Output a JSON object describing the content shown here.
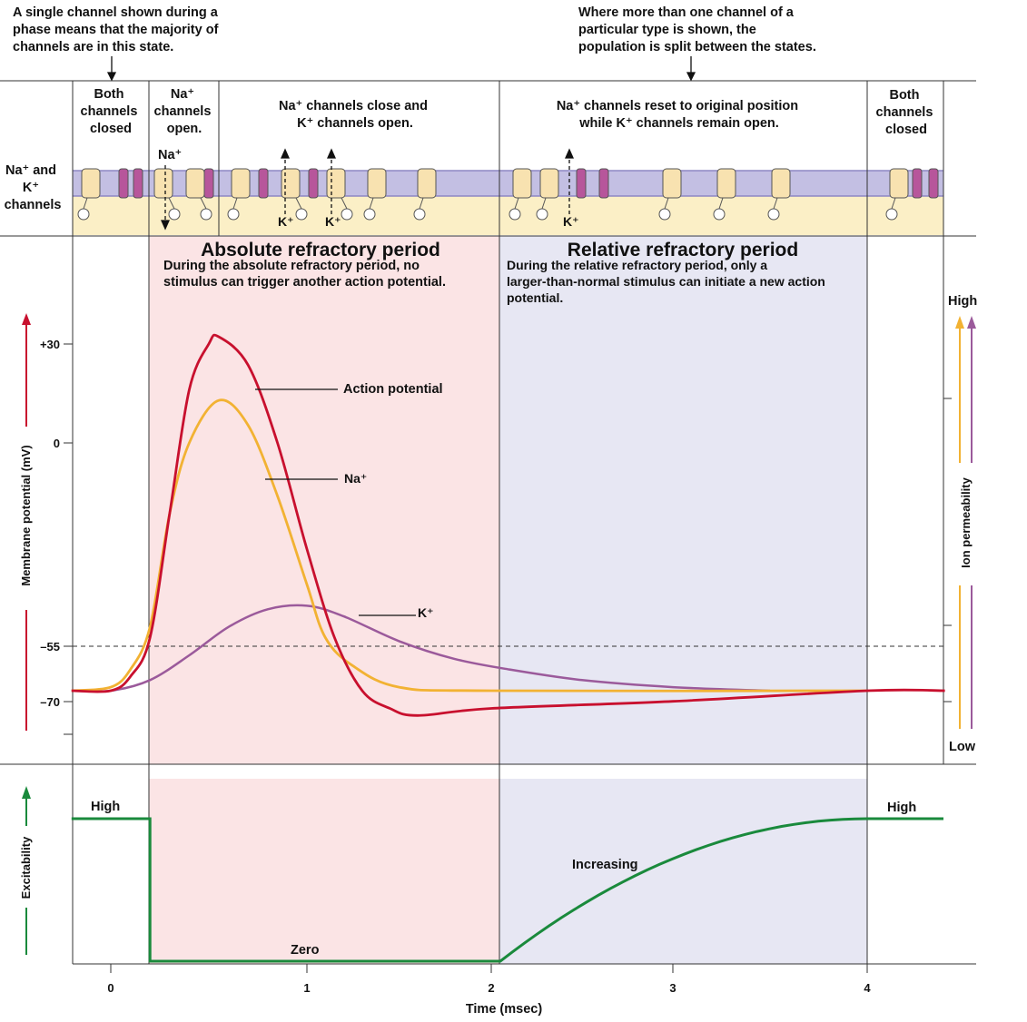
{
  "notes": {
    "left": [
      "A single channel shown during a",
      "phase means that the majority of",
      "channels are in this state."
    ],
    "right": [
      "Where more than one channel of a",
      "particular type is shown, the",
      "population is split between the states."
    ]
  },
  "channel_panel": {
    "row_label": [
      "Na⁺ and",
      "K⁺",
      "channels"
    ],
    "phases": [
      {
        "lines": [
          "Both",
          "channels",
          "closed"
        ]
      },
      {
        "lines": [
          "Na⁺",
          "channels",
          "open."
        ]
      },
      {
        "lines": [
          "Na⁺ channels close and",
          "K⁺ channels open."
        ]
      },
      {
        "lines": [
          "Na⁺ channels reset to original position",
          "while K⁺ channels remain open."
        ]
      },
      {
        "lines": [
          "Both",
          "channels",
          "closed"
        ]
      }
    ],
    "ion_labels": {
      "na_inflow": "Na⁺",
      "k_outflow": "K⁺"
    }
  },
  "refractory": {
    "absolute": {
      "title": "Absolute refractory period",
      "desc": [
        "During the absolute refractory period, no",
        "stimulus can trigger another action potential."
      ]
    },
    "relative": {
      "title": "Relative refractory period",
      "desc": [
        "During the relative refractory period, only a",
        "larger-than-normal stimulus can initiate a new action",
        "potential."
      ]
    }
  },
  "potential_axis": {
    "label": "Membrane potential (mV)",
    "ticks": [
      "+30",
      "0",
      "–55",
      "–70"
    ]
  },
  "permeability_axis": {
    "label": "Ion permeability",
    "high": "High",
    "low": "Low"
  },
  "excitability_axis": {
    "label": "Excitability"
  },
  "curve_labels": {
    "action_potential": "Action potential",
    "na": "Na⁺",
    "k": "K⁺"
  },
  "excitability_labels": {
    "high_left": "High",
    "high_right": "High",
    "zero": "Zero",
    "increasing": "Increasing"
  },
  "time_axis": {
    "label": "Time (msec)",
    "ticks": [
      "0",
      "1",
      "2",
      "3",
      "4"
    ]
  },
  "chart_data": {
    "type": "line",
    "xlabel": "Time (msec)",
    "ylabel": "Membrane potential (mV)",
    "xlim": [
      -0.2,
      4.4
    ],
    "ylim": [
      -85,
      40
    ],
    "threshold_mV": -55,
    "series": [
      {
        "name": "Action potential",
        "color": "#c8102e",
        "points": [
          [
            -0.2,
            -70
          ],
          [
            0,
            -70
          ],
          [
            0.1,
            -66
          ],
          [
            0.2,
            -55
          ],
          [
            0.3,
            -20
          ],
          [
            0.4,
            15
          ],
          [
            0.5,
            28
          ],
          [
            0.55,
            30
          ],
          [
            0.7,
            22
          ],
          [
            0.85,
            0
          ],
          [
            1.0,
            -30
          ],
          [
            1.15,
            -55
          ],
          [
            1.3,
            -70
          ],
          [
            1.45,
            -75
          ],
          [
            1.6,
            -77
          ],
          [
            2.0,
            -75
          ],
          [
            3.0,
            -73
          ],
          [
            4.0,
            -70
          ],
          [
            4.4,
            -70
          ]
        ]
      },
      {
        "name": "Na⁺",
        "color": "#f2b233",
        "points": [
          [
            -0.2,
            -70
          ],
          [
            0,
            -69
          ],
          [
            0.1,
            -64
          ],
          [
            0.2,
            -52
          ],
          [
            0.3,
            -20
          ],
          [
            0.4,
            0
          ],
          [
            0.55,
            12
          ],
          [
            0.7,
            5
          ],
          [
            0.85,
            -15
          ],
          [
            1.0,
            -40
          ],
          [
            1.1,
            -55
          ],
          [
            1.25,
            -63
          ],
          [
            1.5,
            -69
          ],
          [
            2.0,
            -70
          ],
          [
            4.0,
            -70
          ]
        ]
      },
      {
        "name": "K⁺",
        "color": "#9b5a9b",
        "points": [
          [
            -0.2,
            -70
          ],
          [
            0,
            -70
          ],
          [
            0.2,
            -67
          ],
          [
            0.4,
            -60
          ],
          [
            0.6,
            -52
          ],
          [
            0.8,
            -47
          ],
          [
            1.0,
            -46
          ],
          [
            1.2,
            -49
          ],
          [
            1.5,
            -56
          ],
          [
            1.8,
            -61
          ],
          [
            2.1,
            -64
          ],
          [
            2.5,
            -67
          ],
          [
            3.0,
            -69
          ],
          [
            3.5,
            -70
          ]
        ]
      }
    ],
    "excitability": {
      "name": "Excitability",
      "color": "#1a8a3c",
      "points": [
        [
          -0.2,
          "High"
        ],
        [
          0.2,
          "High"
        ],
        [
          0.2,
          "Zero"
        ],
        [
          2.05,
          "Zero"
        ],
        [
          4.0,
          "High"
        ],
        [
          4.4,
          "High"
        ]
      ]
    },
    "periods": [
      {
        "name": "Absolute refractory period",
        "x": [
          0.2,
          2.05
        ],
        "color": "#fbe3e4"
      },
      {
        "name": "Relative refractory period",
        "x": [
          2.05,
          4.0
        ],
        "color": "#e6e6f2"
      }
    ]
  },
  "colors": {
    "absolute_bg": "#fbe4e5",
    "relative_bg": "#e7e7f3",
    "membrane": "#c3bfe3",
    "cytoplasm": "#fbefc6",
    "red": "#c8102e",
    "yellow": "#f2b233",
    "purple": "#9b5a9b",
    "green": "#1a8a3c"
  }
}
